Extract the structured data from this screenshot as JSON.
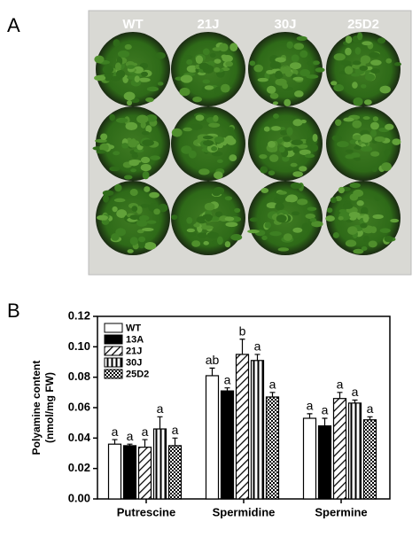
{
  "panel_labels": [
    "A",
    "B"
  ],
  "photo_labels": [
    "WT",
    "21J",
    "30J",
    "25D2"
  ],
  "chart_data": {
    "type": "bar",
    "y_label": [
      "Polyamine content",
      "(nmol/mg FW)"
    ],
    "categories": [
      "Putrescine",
      "Spermidine",
      "Spermine"
    ],
    "series": [
      {
        "name": "WT",
        "color": "#ffffff",
        "pattern": "solid",
        "values": [
          0.036,
          0.081,
          0.053
        ],
        "errors": [
          0.003,
          0.005,
          0.003
        ],
        "letters": [
          "a",
          "ab",
          "a"
        ]
      },
      {
        "name": "13A",
        "color": "#000000",
        "pattern": "solid",
        "values": [
          0.035,
          0.071,
          0.048
        ],
        "errors": [
          0.001,
          0.002,
          0.005
        ],
        "letters": [
          "a",
          "a",
          "a"
        ]
      },
      {
        "name": "21J",
        "color": "#000000",
        "pattern": "diagonal",
        "values": [
          0.034,
          0.095,
          0.066
        ],
        "errors": [
          0.005,
          0.01,
          0.004
        ],
        "letters": [
          "a",
          "b",
          "a"
        ]
      },
      {
        "name": "30J",
        "color": "#000000",
        "pattern": "vertical",
        "values": [
          0.046,
          0.091,
          0.063
        ],
        "errors": [
          0.008,
          0.004,
          0.002
        ],
        "letters": [
          "a",
          "a",
          "a"
        ]
      },
      {
        "name": "25D2",
        "color": "#000000",
        "pattern": "checker",
        "values": [
          0.035,
          0.067,
          0.052
        ],
        "errors": [
          0.005,
          0.003,
          0.002
        ],
        "letters": [
          "a",
          "a",
          "a"
        ]
      }
    ],
    "ylim": [
      0,
      0.12
    ],
    "yticks": [
      {
        "value": 0,
        "label": "0.00"
      },
      {
        "value": 0.02,
        "label": "0.02"
      },
      {
        "value": 0.04,
        "label": "0.04"
      },
      {
        "value": 0.06,
        "label": "0.06"
      },
      {
        "value": 0.08,
        "label": "0.08"
      },
      {
        "value": 0.1,
        "label": "0.10"
      },
      {
        "value": 0.12,
        "label": "0.12"
      }
    ],
    "legend": "upper left"
  }
}
